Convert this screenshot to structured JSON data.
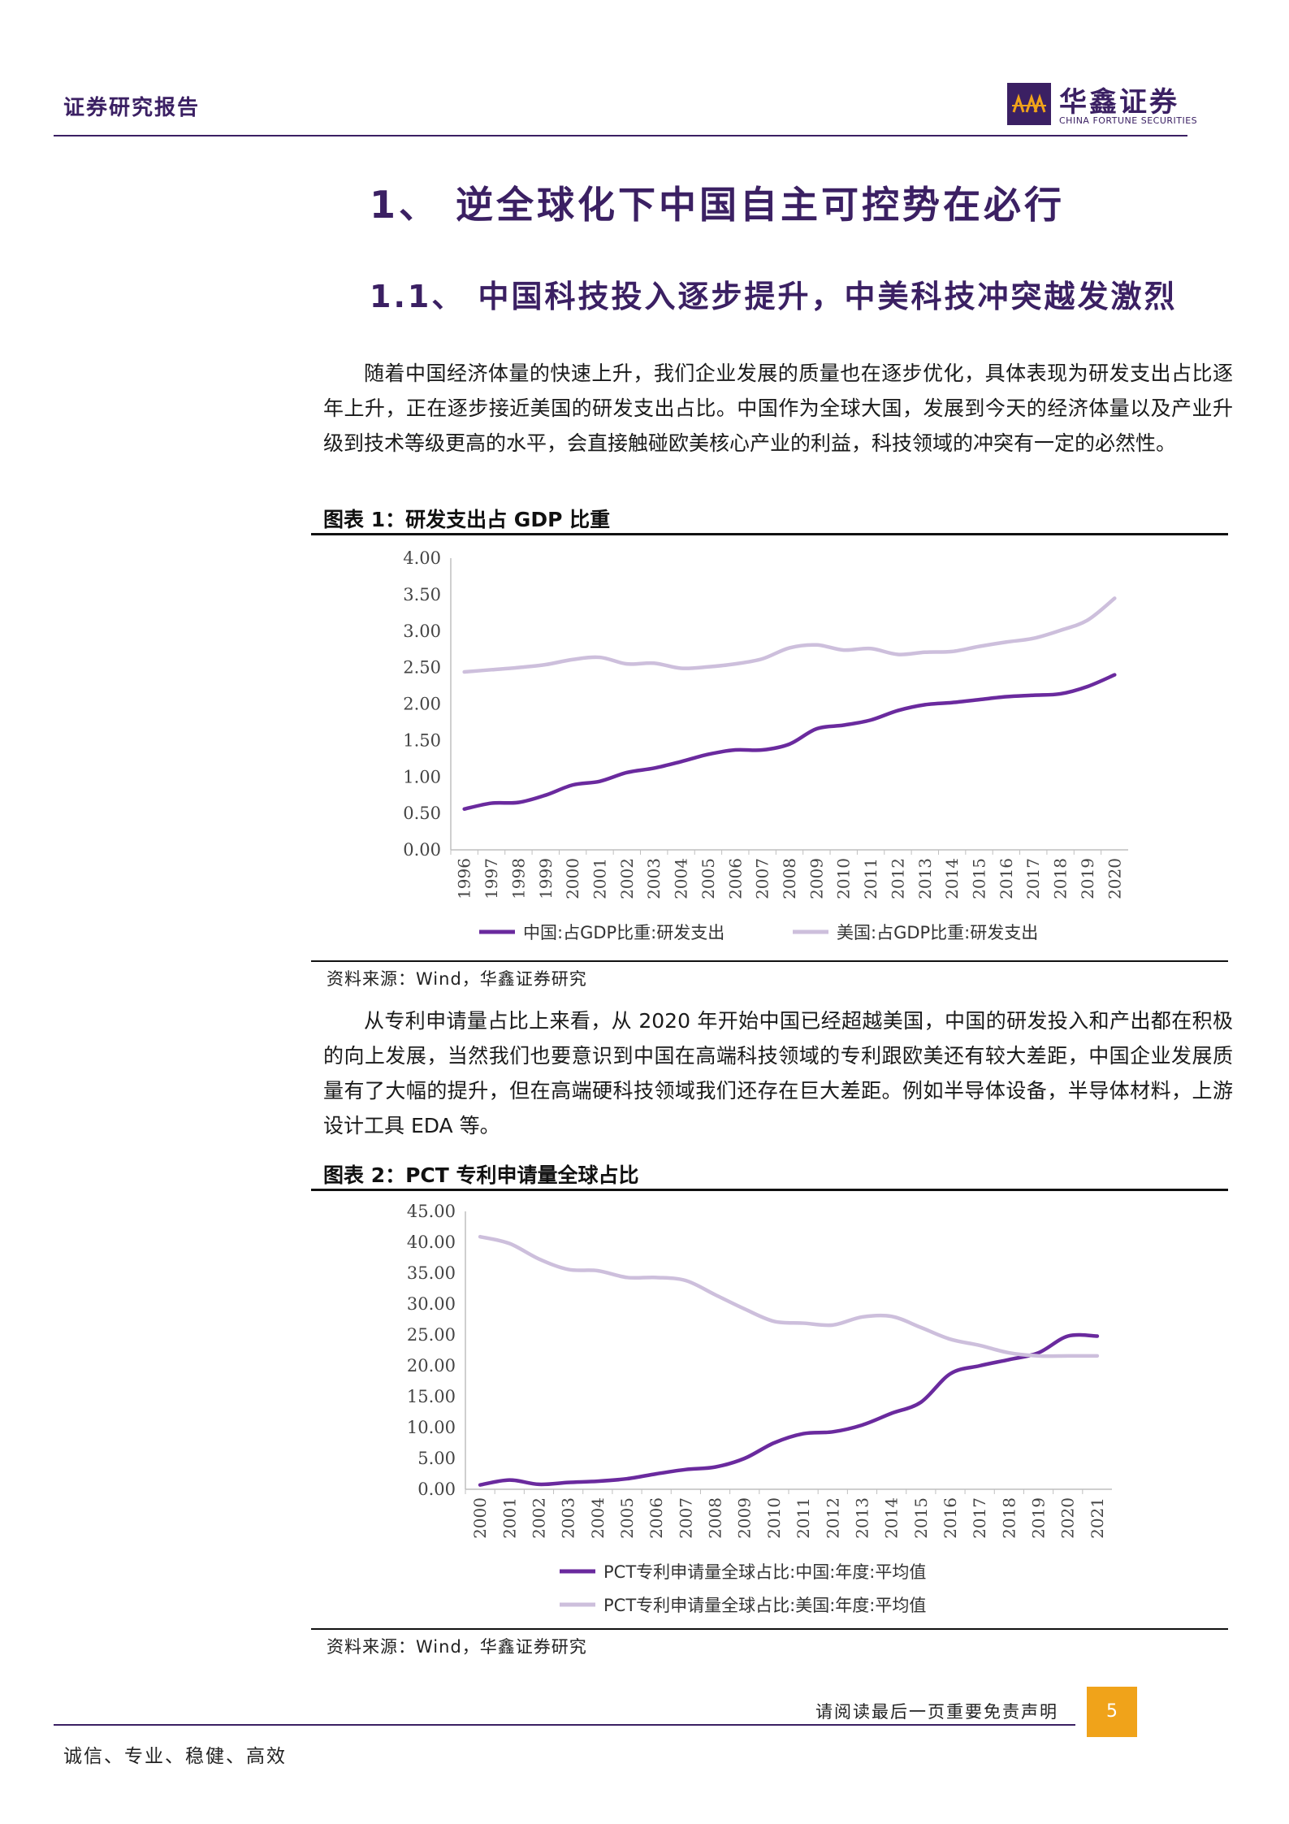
{
  "header": {
    "report_type": "证券研究报告",
    "logo_name": "华鑫证券",
    "logo_en": "CHINA FORTUNE SECURITIES"
  },
  "heading1": "1、 逆全球化下中国自主可控势在必行",
  "heading2": "1.1、 中国科技投入逐步提升，中美科技冲突越发激烈",
  "paragraph1": "随着中国经济体量的快速上升，我们企业发展的质量也在逐步优化，具体表现为研发支出占比逐年上升，正在逐步接近美国的研发支出占比。中国作为全球大国，发展到今天的经济体量以及产业升级到技术等级更高的水平，会直接触碰欧美核心产业的利益，科技领域的冲突有一定的必然性。",
  "figure1": {
    "title": "图表 1：研发支出占 GDP 比重",
    "source": "资料来源：Wind，华鑫证券研究"
  },
  "paragraph2": "从专利申请量占比上来看，从 2020 年开始中国已经超越美国，中国的研发投入和产出都在积极的向上发展，当然我们也要意识到中国在高端科技领域的专利跟欧美还有较大差距，中国企业发展质量有了大幅的提升，但在高端硬科技领域我们还存在巨大差距。例如半导体设备，半导体材料，上游设计工具 EDA 等。",
  "figure2": {
    "title": "图表 2：PCT 专利申请量全球占比",
    "source": "资料来源：Wind，华鑫证券研究"
  },
  "footer": {
    "disclaimer": "请阅读最后一页重要免责声明",
    "page_number": "5",
    "motto": "诚信、专业、稳健、高效"
  },
  "colors": {
    "brand": "#3b2063",
    "china_series": "#6a2a9e",
    "us_series": "#cdbfdc",
    "page_badge": "#f0a31a"
  },
  "chart_data": [
    {
      "type": "line",
      "x": [
        "1996",
        "1997",
        "1998",
        "1999",
        "2000",
        "2001",
        "2002",
        "2003",
        "2004",
        "2005",
        "2006",
        "2007",
        "2008",
        "2009",
        "2010",
        "2011",
        "2012",
        "2013",
        "2014",
        "2015",
        "2016",
        "2017",
        "2018",
        "2019",
        "2020"
      ],
      "series": [
        {
          "name": "中国:占GDP比重:研发支出",
          "values": [
            0.56,
            0.64,
            0.65,
            0.75,
            0.89,
            0.94,
            1.06,
            1.12,
            1.21,
            1.31,
            1.37,
            1.37,
            1.45,
            1.66,
            1.71,
            1.78,
            1.91,
            1.99,
            2.02,
            2.06,
            2.1,
            2.12,
            2.14,
            2.24,
            2.4
          ]
        },
        {
          "name": "美国:占GDP比重:研发支出",
          "values": [
            2.44,
            2.47,
            2.5,
            2.54,
            2.61,
            2.64,
            2.55,
            2.56,
            2.49,
            2.51,
            2.55,
            2.62,
            2.77,
            2.81,
            2.74,
            2.76,
            2.68,
            2.71,
            2.72,
            2.79,
            2.85,
            2.9,
            3.01,
            3.15,
            3.45
          ]
        }
      ],
      "ylim": [
        0,
        4
      ],
      "yticks": [
        "0.00",
        "0.50",
        "1.00",
        "1.50",
        "2.00",
        "2.50",
        "3.00",
        "3.50",
        "4.00"
      ],
      "legend": "bottom"
    },
    {
      "type": "line",
      "x": [
        "2000",
        "2001",
        "2002",
        "2003",
        "2004",
        "2005",
        "2006",
        "2007",
        "2008",
        "2009",
        "2010",
        "2011",
        "2012",
        "2013",
        "2014",
        "2015",
        "2016",
        "2017",
        "2018",
        "2019",
        "2020",
        "2021"
      ],
      "series": [
        {
          "name": "PCT专利申请量全球占比:中国:年度:平均值",
          "values": [
            0.7,
            1.5,
            0.8,
            1.1,
            1.3,
            1.7,
            2.5,
            3.2,
            3.6,
            5.0,
            7.5,
            9.0,
            9.3,
            10.4,
            12.3,
            14.1,
            18.7,
            20.0,
            21.0,
            22.1,
            24.8,
            24.8
          ]
        },
        {
          "name": "PCT专利申请量全球占比:美国:年度:平均值",
          "values": [
            40.9,
            39.8,
            37.3,
            35.6,
            35.4,
            34.3,
            34.3,
            33.8,
            31.5,
            29.2,
            27.2,
            26.9,
            26.6,
            27.9,
            28.0,
            26.2,
            24.3,
            23.3,
            22.1,
            21.6,
            21.6,
            21.6
          ]
        }
      ],
      "ylim": [
        0,
        45
      ],
      "yticks": [
        "0.00",
        "5.00",
        "10.00",
        "15.00",
        "20.00",
        "25.00",
        "30.00",
        "35.00",
        "40.00",
        "45.00"
      ],
      "legend": "bottom"
    }
  ]
}
